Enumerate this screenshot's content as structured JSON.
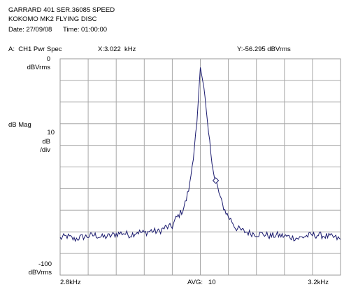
{
  "header": {
    "line1": "GARRARD 401 SER.36085 SPEED",
    "line2": "KOKOMO MK2 FLYING DISC",
    "date_label": "Date: 27/09/08",
    "time_label": "Time: 01:00:00"
  },
  "trace": {
    "label": "A:  CH1 Pwr Spec",
    "x_readout": "X:3.022  kHz",
    "y_readout": "Y:-56.295 dBVrms"
  },
  "y_axis": {
    "top_value": "0",
    "top_unit": "dBVrms",
    "quantity": "dB Mag",
    "scale_value": "10",
    "scale_unit": "dB",
    "scale_per": "/div",
    "bottom_value": "-100",
    "bottom_unit": "dBVrms"
  },
  "x_axis": {
    "start_label": "2.8kHz",
    "end_label": "3.2kHz",
    "avg_label": "AVG:   10"
  },
  "chart_data": {
    "type": "line",
    "title": "",
    "x_unit": "kHz",
    "y_unit": "dBVrms",
    "xlim": [
      2.8,
      3.2
    ],
    "ylim": [
      -100,
      0
    ],
    "grid": true,
    "grid_divisions": {
      "x": 10,
      "y": 10
    },
    "marker": {
      "x": 3.022,
      "y": -56.295
    },
    "series": [
      {
        "color": "#1a1a6e",
        "points": [
          [
            2.8,
            -83.0
          ],
          [
            2.81,
            -82.0
          ],
          [
            2.82,
            -83.5
          ],
          [
            2.83,
            -82.5
          ],
          [
            2.84,
            -82.0
          ],
          [
            2.85,
            -81.5
          ],
          [
            2.86,
            -82.5
          ],
          [
            2.87,
            -82.0
          ],
          [
            2.88,
            -81.0
          ],
          [
            2.89,
            -80.5
          ],
          [
            2.9,
            -81.5
          ],
          [
            2.91,
            -80.0
          ],
          [
            2.92,
            -80.5
          ],
          [
            2.93,
            -79.5
          ],
          [
            2.94,
            -80.0
          ],
          [
            2.95,
            -78.0
          ],
          [
            2.96,
            -77.5
          ],
          [
            2.965,
            -74.0
          ],
          [
            2.97,
            -72.0
          ],
          [
            2.975,
            -70.0
          ],
          [
            2.98,
            -65.0
          ],
          [
            2.985,
            -58.0
          ],
          [
            2.99,
            -45.0
          ],
          [
            2.995,
            -30.0
          ],
          [
            3.0,
            -4.0
          ],
          [
            3.005,
            -13.0
          ],
          [
            3.01,
            -30.0
          ],
          [
            3.015,
            -43.0
          ],
          [
            3.02,
            -55.0
          ],
          [
            3.022,
            -56.3
          ],
          [
            3.025,
            -60.0
          ],
          [
            3.03,
            -66.0
          ],
          [
            3.035,
            -70.0
          ],
          [
            3.04,
            -73.0
          ],
          [
            3.045,
            -75.0
          ],
          [
            3.05,
            -78.0
          ],
          [
            3.06,
            -79.5
          ],
          [
            3.07,
            -80.5
          ],
          [
            3.08,
            -81.0
          ],
          [
            3.09,
            -81.0
          ],
          [
            3.1,
            -82.0
          ],
          [
            3.11,
            -81.5
          ],
          [
            3.12,
            -82.0
          ],
          [
            3.13,
            -82.5
          ],
          [
            3.14,
            -83.0
          ],
          [
            3.15,
            -82.0
          ],
          [
            3.16,
            -81.5
          ],
          [
            3.17,
            -81.5
          ],
          [
            3.18,
            -82.0
          ],
          [
            3.19,
            -82.5
          ],
          [
            3.2,
            -83.5
          ]
        ]
      }
    ]
  }
}
